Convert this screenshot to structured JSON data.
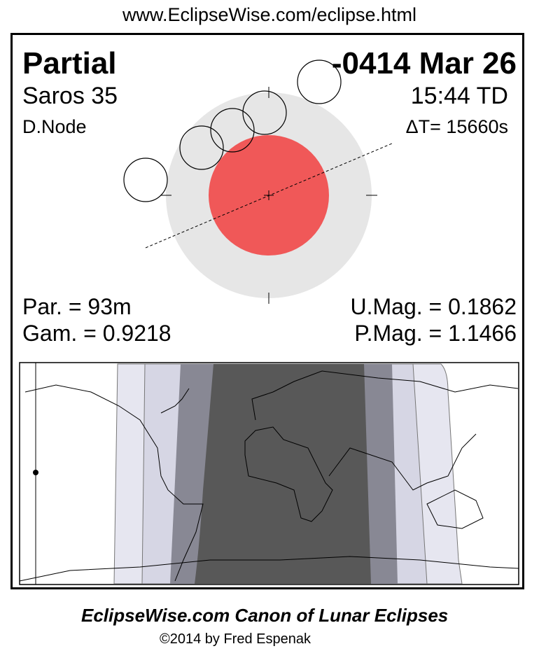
{
  "url": "www.EclipseWise.com/eclipse.html",
  "eclipse": {
    "type": "Partial",
    "date": "-0414 Mar 26",
    "saros": "Saros  35",
    "time": "15:44 TD",
    "node": "D.Node",
    "delta_t": "ΔT=  15660s",
    "par": "Par. =  93m",
    "gam": "Gam. = 0.9218",
    "umag": "U.Mag. = 0.1862",
    "pmag": "P.Mag. = 1.1466"
  },
  "colors": {
    "umbra": "#f05858",
    "penumbra": "#e6e6e6",
    "band_light": "#e6e6f0",
    "band_2": "#d6d6e4",
    "band_3": "#888894",
    "band_dark": "#585858"
  },
  "footer": {
    "title": "EclipseWise.com Canon of Lunar Eclipses",
    "copyright": "©2014 by Fred Espenak"
  }
}
